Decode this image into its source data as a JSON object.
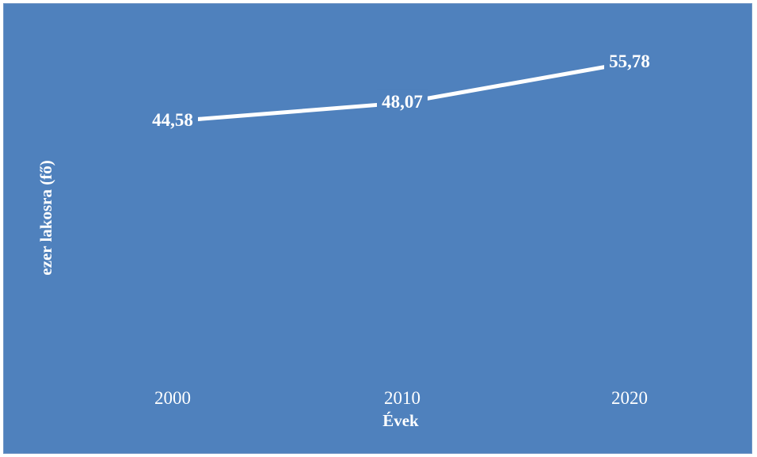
{
  "chart_data": {
    "type": "line",
    "title": "",
    "xlabel": "Évek",
    "ylabel": "ezer lakosra (fő)",
    "categories": [
      "2000",
      "2010",
      "2020"
    ],
    "series": [
      {
        "values": [
          44.58,
          48.07,
          55.78
        ],
        "labels": [
          "44,58",
          "48,07",
          "55,78"
        ]
      }
    ],
    "ylim": [
      0,
      60
    ],
    "grid": false,
    "legend": "none",
    "drop_lines": true,
    "colors": {
      "background": "#4f81bd",
      "line": "#ffffff",
      "text": "#ffffff"
    }
  }
}
